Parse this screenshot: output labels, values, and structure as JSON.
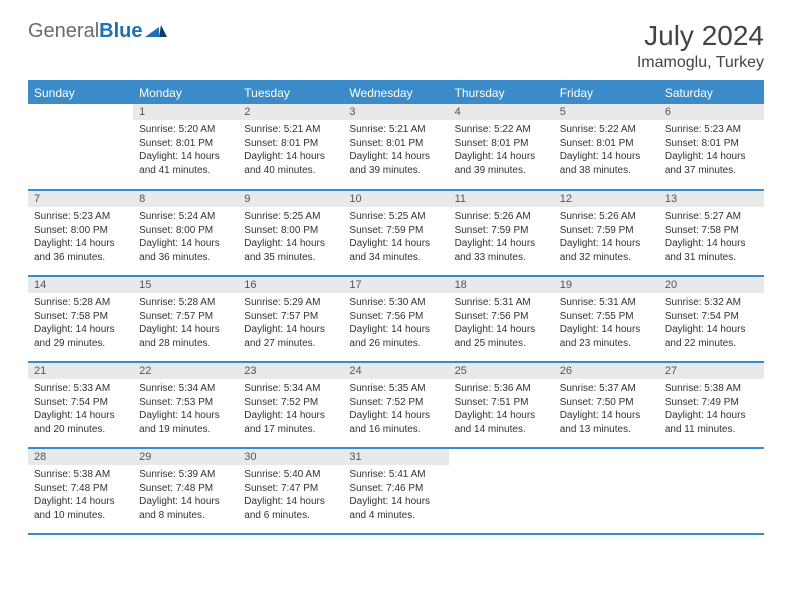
{
  "brand": {
    "part1": "General",
    "part2": "Blue"
  },
  "title": "July 2024",
  "location": "Imamoglu, Turkey",
  "colors": {
    "header_bg": "#3b8bc9",
    "header_text": "#ffffff",
    "daynum_bg": "#e9e9e9",
    "border": "#3b8bc9",
    "body_text": "#333333",
    "background": "#ffffff"
  },
  "dayNames": [
    "Sunday",
    "Monday",
    "Tuesday",
    "Wednesday",
    "Thursday",
    "Friday",
    "Saturday"
  ],
  "firstWeekday": 1,
  "daysInMonth": 31,
  "days": {
    "1": {
      "sunrise": "5:20 AM",
      "sunset": "8:01 PM",
      "daylight": "14 hours and 41 minutes."
    },
    "2": {
      "sunrise": "5:21 AM",
      "sunset": "8:01 PM",
      "daylight": "14 hours and 40 minutes."
    },
    "3": {
      "sunrise": "5:21 AM",
      "sunset": "8:01 PM",
      "daylight": "14 hours and 39 minutes."
    },
    "4": {
      "sunrise": "5:22 AM",
      "sunset": "8:01 PM",
      "daylight": "14 hours and 39 minutes."
    },
    "5": {
      "sunrise": "5:22 AM",
      "sunset": "8:01 PM",
      "daylight": "14 hours and 38 minutes."
    },
    "6": {
      "sunrise": "5:23 AM",
      "sunset": "8:01 PM",
      "daylight": "14 hours and 37 minutes."
    },
    "7": {
      "sunrise": "5:23 AM",
      "sunset": "8:00 PM",
      "daylight": "14 hours and 36 minutes."
    },
    "8": {
      "sunrise": "5:24 AM",
      "sunset": "8:00 PM",
      "daylight": "14 hours and 36 minutes."
    },
    "9": {
      "sunrise": "5:25 AM",
      "sunset": "8:00 PM",
      "daylight": "14 hours and 35 minutes."
    },
    "10": {
      "sunrise": "5:25 AM",
      "sunset": "7:59 PM",
      "daylight": "14 hours and 34 minutes."
    },
    "11": {
      "sunrise": "5:26 AM",
      "sunset": "7:59 PM",
      "daylight": "14 hours and 33 minutes."
    },
    "12": {
      "sunrise": "5:26 AM",
      "sunset": "7:59 PM",
      "daylight": "14 hours and 32 minutes."
    },
    "13": {
      "sunrise": "5:27 AM",
      "sunset": "7:58 PM",
      "daylight": "14 hours and 31 minutes."
    },
    "14": {
      "sunrise": "5:28 AM",
      "sunset": "7:58 PM",
      "daylight": "14 hours and 29 minutes."
    },
    "15": {
      "sunrise": "5:28 AM",
      "sunset": "7:57 PM",
      "daylight": "14 hours and 28 minutes."
    },
    "16": {
      "sunrise": "5:29 AM",
      "sunset": "7:57 PM",
      "daylight": "14 hours and 27 minutes."
    },
    "17": {
      "sunrise": "5:30 AM",
      "sunset": "7:56 PM",
      "daylight": "14 hours and 26 minutes."
    },
    "18": {
      "sunrise": "5:31 AM",
      "sunset": "7:56 PM",
      "daylight": "14 hours and 25 minutes."
    },
    "19": {
      "sunrise": "5:31 AM",
      "sunset": "7:55 PM",
      "daylight": "14 hours and 23 minutes."
    },
    "20": {
      "sunrise": "5:32 AM",
      "sunset": "7:54 PM",
      "daylight": "14 hours and 22 minutes."
    },
    "21": {
      "sunrise": "5:33 AM",
      "sunset": "7:54 PM",
      "daylight": "14 hours and 20 minutes."
    },
    "22": {
      "sunrise": "5:34 AM",
      "sunset": "7:53 PM",
      "daylight": "14 hours and 19 minutes."
    },
    "23": {
      "sunrise": "5:34 AM",
      "sunset": "7:52 PM",
      "daylight": "14 hours and 17 minutes."
    },
    "24": {
      "sunrise": "5:35 AM",
      "sunset": "7:52 PM",
      "daylight": "14 hours and 16 minutes."
    },
    "25": {
      "sunrise": "5:36 AM",
      "sunset": "7:51 PM",
      "daylight": "14 hours and 14 minutes."
    },
    "26": {
      "sunrise": "5:37 AM",
      "sunset": "7:50 PM",
      "daylight": "14 hours and 13 minutes."
    },
    "27": {
      "sunrise": "5:38 AM",
      "sunset": "7:49 PM",
      "daylight": "14 hours and 11 minutes."
    },
    "28": {
      "sunrise": "5:38 AM",
      "sunset": "7:48 PM",
      "daylight": "14 hours and 10 minutes."
    },
    "29": {
      "sunrise": "5:39 AM",
      "sunset": "7:48 PM",
      "daylight": "14 hours and 8 minutes."
    },
    "30": {
      "sunrise": "5:40 AM",
      "sunset": "7:47 PM",
      "daylight": "14 hours and 6 minutes."
    },
    "31": {
      "sunrise": "5:41 AM",
      "sunset": "7:46 PM",
      "daylight": "14 hours and 4 minutes."
    }
  },
  "labels": {
    "sunrise": "Sunrise:",
    "sunset": "Sunset:",
    "daylight": "Daylight:"
  }
}
